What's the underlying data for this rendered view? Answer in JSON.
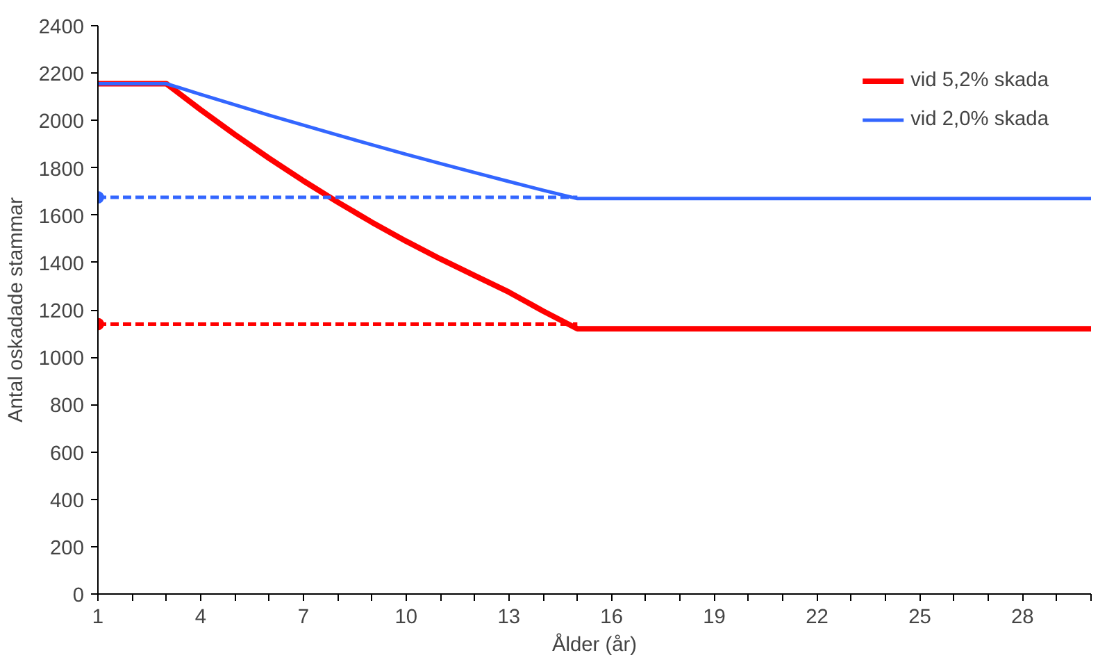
{
  "chart_data": {
    "type": "line",
    "xlabel": "Ålder (år)",
    "ylabel": "Antal oskadade stammar",
    "x": [
      1,
      2,
      3,
      4,
      5,
      6,
      7,
      8,
      9,
      10,
      11,
      12,
      13,
      14,
      15,
      16,
      17,
      18,
      19,
      20,
      21,
      22,
      23,
      24,
      25,
      26,
      27,
      28,
      29,
      30
    ],
    "series": [
      {
        "name": "vid 5,2% skada",
        "color": "#ff0000",
        "values": [
          2155,
          2155,
          2155,
          2045,
          1940,
          1840,
          1745,
          1655,
          1570,
          1490,
          1415,
          1345,
          1275,
          1195,
          1120,
          1120,
          1120,
          1120,
          1120,
          1120,
          1120,
          1120,
          1120,
          1120,
          1120,
          1120,
          1120,
          1120,
          1120,
          1120
        ]
      },
      {
        "name": "vid 2,0% skada",
        "color": "#3366ff",
        "values": [
          2155,
          2155,
          2155,
          2110,
          2066,
          2022,
          1980,
          1938,
          1897,
          1857,
          1818,
          1780,
          1742,
          1705,
          1670,
          1670,
          1670,
          1670,
          1670,
          1670,
          1670,
          1670,
          1670,
          1670,
          1670,
          1670,
          1670,
          1670,
          1670,
          1670
        ]
      },
      {
        "type": "line",
        "color": "#ff0000",
        "line_style": "dashed",
        "values": [
          1140,
          1140,
          1140,
          1140,
          1140,
          1140,
          1140,
          1140,
          1140,
          1140,
          1140,
          1140,
          1140,
          1140,
          1140,
          null,
          null,
          null,
          null,
          null,
          null,
          null,
          null,
          null,
          null,
          null,
          null,
          null,
          null,
          null
        ]
      },
      {
        "type": "line",
        "color": "#3366ff",
        "line_style": "dashed",
        "values": [
          1675,
          1675,
          1675,
          1675,
          1675,
          1675,
          1675,
          1675,
          1675,
          1675,
          1675,
          1675,
          1675,
          1675,
          1675,
          null,
          null,
          null,
          null,
          null,
          null,
          null,
          null,
          null,
          null,
          null,
          null,
          null,
          null,
          null
        ]
      },
      {
        "type": "scatter",
        "color": "#ff0000",
        "marker": "circle",
        "values": [
          1140,
          null,
          null,
          null,
          null,
          null,
          null,
          null,
          null,
          null,
          null,
          null,
          null,
          null,
          null,
          null,
          null,
          null,
          null,
          null,
          null,
          null,
          null,
          null,
          null,
          null,
          null,
          null,
          null,
          null
        ]
      },
      {
        "type": "scatter",
        "color": "#3366ff",
        "marker": "circle",
        "values": [
          1675,
          null,
          null,
          null,
          null,
          null,
          null,
          null,
          null,
          null,
          null,
          null,
          null,
          null,
          null,
          null,
          null,
          null,
          null,
          null,
          null,
          null,
          null,
          null,
          null,
          null,
          null,
          null,
          null,
          null
        ]
      }
    ],
    "xlim": [
      1,
      30
    ],
    "xticks": [
      1,
      {
        "value": 2,
        "label": null
      },
      {
        "value": 3,
        "label": null
      },
      4,
      {
        "value": 5,
        "label": null
      },
      {
        "value": 6,
        "label": null
      },
      7,
      {
        "value": 8,
        "label": null
      },
      {
        "value": 9,
        "label": null
      },
      10,
      {
        "value": 11,
        "label": null
      },
      {
        "value": 12,
        "label": null
      },
      13,
      {
        "value": 14,
        "label": null
      },
      {
        "value": 15,
        "label": null
      },
      16,
      {
        "value": 17,
        "label": null
      },
      {
        "value": 18,
        "label": null
      },
      19,
      {
        "value": 20,
        "label": null
      },
      {
        "value": 21,
        "label": null
      },
      22,
      {
        "value": 23,
        "label": null
      },
      {
        "value": 24,
        "label": null
      },
      25,
      {
        "value": 26,
        "label": null
      },
      {
        "value": 27,
        "label": null
      },
      28,
      {
        "value": 29,
        "label": null
      },
      {
        "value": 30,
        "label": null
      }
    ],
    "ylim": [
      0,
      2400
    ],
    "yticks": [
      0,
      200,
      400,
      600,
      800,
      1000,
      1200,
      1400,
      1600,
      1800,
      2000,
      2200,
      2400
    ],
    "grid": false,
    "legend": "top right",
    "line_style": "solid",
    "marker": "none"
  }
}
